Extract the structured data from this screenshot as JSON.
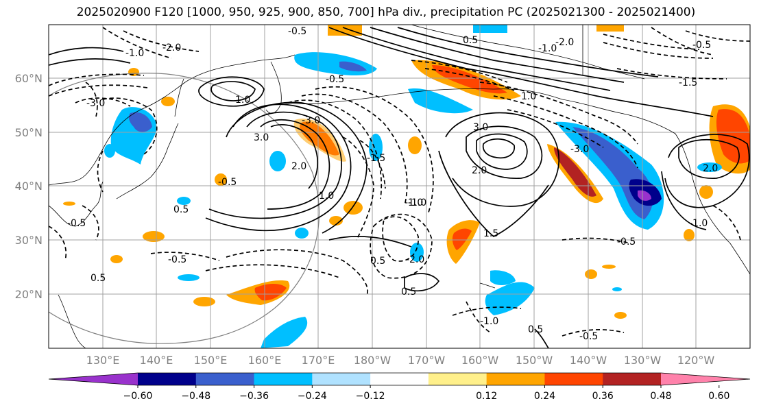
{
  "title": "2025020900 F120 [1000, 950, 925, 900, 850, 700] hPa div., precipitation PC (2025021300 - 2025021400)",
  "lat_labels": [
    "60°N",
    "50°N",
    "40°N",
    "30°N",
    "20°N"
  ],
  "lon_labels": [
    "130°E",
    "140°E",
    "150°E",
    "160°E",
    "170°E",
    "180°W",
    "170°W",
    "160°W",
    "150°W",
    "140°W",
    "130°W",
    "120°W"
  ],
  "colorbar": {
    "ticks": [
      "−0.60",
      "−0.48",
      "−0.36",
      "−0.24",
      "−0.12",
      "0.12",
      "0.24",
      "0.36",
      "0.48",
      "0.60"
    ],
    "colors": [
      "#9932cc",
      "#00008b",
      "#3a5fcd",
      "#00bfff",
      "#b0e2ff",
      "#ffffff",
      "#fff08b",
      "#ffa500",
      "#ff4500",
      "#b22222",
      "#ff82ab"
    ]
  },
  "contour_labels": [
    "-0.5",
    "-0.5",
    "-0.5",
    "-1.0",
    "-1.0",
    "-1.5",
    "-2.0",
    "-2.0",
    "-3.0",
    "-3.0",
    "-3.0",
    "-1.0",
    "0.5",
    "0.5",
    "0.5",
    "0.5",
    "1.0",
    "1.0",
    "1.5",
    "2.0",
    "2.0",
    "2.0",
    "3.0",
    "3.0",
    "1.0",
    "-0.5",
    "-1.5",
    "-0.5",
    "-1.0",
    "-0.5",
    "-0.5",
    "0.5",
    "-1.0",
    "-2.0",
    "-0.5",
    "0.5",
    "-1.0"
  ]
}
